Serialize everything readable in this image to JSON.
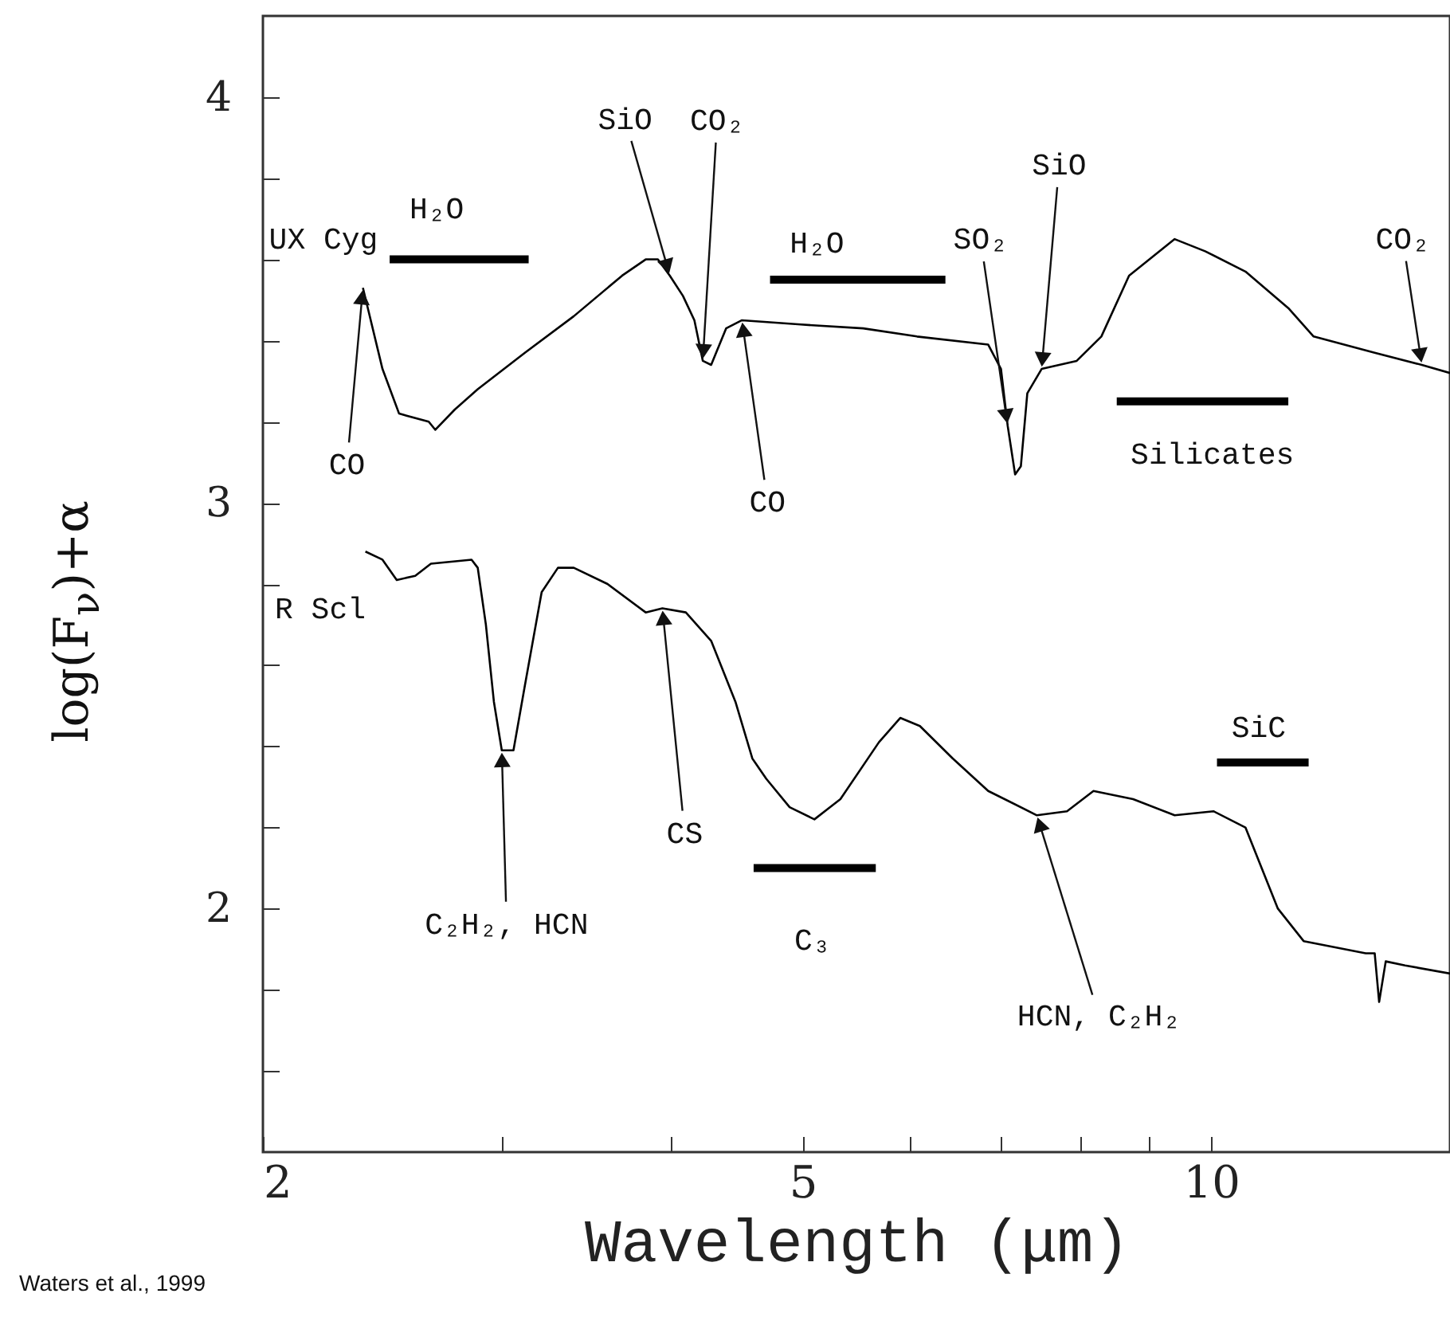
{
  "chart_data": {
    "type": "line",
    "xlabel": "Wavelength (μm)",
    "ylabel": "log(F$_{ν}$)+α",
    "log": "x",
    "xlim": [
      2,
      15
    ],
    "ylim": [
      1.4,
      4.2
    ],
    "xticks": [
      2,
      {
        "value": 3,
        "label": null
      },
      {
        "value": 4,
        "label": null
      },
      5,
      {
        "value": 6,
        "label": null
      },
      {
        "value": 7,
        "label": null
      },
      {
        "value": 8,
        "label": null
      },
      {
        "value": 9,
        "label": null
      },
      10
    ],
    "yticks": [
      {
        "value": 1.6,
        "label": null
      },
      {
        "value": 1.8,
        "label": null
      },
      2,
      {
        "value": 2.2,
        "label": null
      },
      {
        "value": 2.4,
        "label": null
      },
      {
        "value": 2.6,
        "label": null
      },
      {
        "value": 2.8,
        "label": null
      },
      3,
      {
        "value": 3.2,
        "label": null
      },
      {
        "value": 3.4,
        "label": null
      },
      {
        "value": 3.6,
        "label": null
      },
      {
        "value": 3.8,
        "label": null
      },
      4
    ],
    "series": [
      {
        "name": "UX Cyg",
        "color": "#000000",
        "x": [
          2.37,
          2.45,
          2.52,
          2.65,
          2.68,
          2.77,
          2.88,
          3.12,
          3.39,
          3.68,
          3.83,
          3.91,
          3.99,
          4.08,
          4.16,
          4.22,
          4.28,
          4.39,
          4.51,
          4.96,
          5.54,
          6.07,
          6.85,
          7.0,
          7.08,
          7.17,
          7.24,
          7.32,
          7.5,
          7.96,
          8.3,
          8.7,
          9.4,
          9.9,
          10.6,
          11.4,
          11.9,
          13.2,
          14.3,
          15.0
        ],
        "values": [
          3.53,
          3.33,
          3.22,
          3.2,
          3.18,
          3.23,
          3.28,
          3.37,
          3.46,
          3.56,
          3.6,
          3.6,
          3.56,
          3.51,
          3.45,
          3.35,
          3.34,
          3.43,
          3.45,
          3.44,
          3.43,
          3.41,
          3.39,
          3.33,
          3.19,
          3.07,
          3.09,
          3.27,
          3.33,
          3.35,
          3.41,
          3.56,
          3.65,
          3.62,
          3.57,
          3.48,
          3.41,
          3.37,
          3.34,
          3.32
        ]
      },
      {
        "name": "R Scl",
        "color": "#000000",
        "x": [
          2.38,
          2.45,
          2.51,
          2.59,
          2.66,
          2.85,
          2.88,
          2.92,
          2.96,
          3.0,
          3.06,
          3.12,
          3.21,
          3.3,
          3.39,
          3.59,
          3.83,
          3.94,
          4.1,
          4.28,
          4.46,
          4.59,
          4.7,
          4.89,
          5.1,
          5.33,
          5.69,
          5.9,
          6.1,
          6.45,
          6.85,
          7.44,
          7.83,
          8.19,
          8.76,
          9.4,
          10.04,
          10.6,
          11.2,
          11.7,
          13.0,
          13.2,
          13.3,
          13.45,
          13.9,
          15.0
        ],
        "values": [
          2.88,
          2.86,
          2.81,
          2.82,
          2.85,
          2.86,
          2.84,
          2.7,
          2.51,
          2.39,
          2.39,
          2.55,
          2.78,
          2.84,
          2.84,
          2.8,
          2.73,
          2.74,
          2.73,
          2.66,
          2.51,
          2.37,
          2.32,
          2.25,
          2.22,
          2.27,
          2.41,
          2.47,
          2.45,
          2.37,
          2.29,
          2.23,
          2.24,
          2.29,
          2.27,
          2.23,
          2.24,
          2.2,
          2.0,
          1.92,
          1.89,
          1.89,
          1.77,
          1.87,
          1.86,
          1.84
        ]
      },
      {
        "color": "#000000",
        "x": [
          2.48,
          3.14
        ],
        "values": [
          3.6,
          3.6
        ]
      },
      {
        "color": "#000000",
        "x": [
          4.73,
          6.37
        ],
        "values": [
          3.55,
          3.55
        ]
      },
      {
        "color": "#000000",
        "x": [
          8.52,
          11.4
        ],
        "values": [
          3.25,
          3.25
        ]
      },
      {
        "color": "#000000",
        "x": [
          10.1,
          11.8
        ],
        "values": [
          2.36,
          2.36
        ]
      },
      {
        "color": "#000000",
        "x": [
          4.6,
          5.66
        ],
        "values": [
          2.1,
          2.1
        ]
      }
    ],
    "annotations": [
      {
        "text": "CO",
        "x": 2.37,
        "y": 3.53
      },
      {
        "text": "SiO",
        "x": 3.99,
        "y": 3.56
      },
      {
        "text": "CO₂",
        "x": 4.22,
        "y": 3.35
      },
      {
        "text": "H₂O",
        "x": 5.48,
        "y": 3.55
      },
      {
        "text": "SO₂",
        "x": 7.08,
        "y": 3.19
      },
      {
        "text": "SiO",
        "x": 7.5,
        "y": 3.33
      },
      {
        "text": "CO₂",
        "x": 14.3,
        "y": 3.34
      },
      {
        "text": "H₂O",
        "x": 2.79,
        "y": 3.6
      },
      {
        "text": "Silicates",
        "x": 9.86,
        "y": 3.25
      },
      {
        "text": "CO",
        "x": 4.51,
        "y": 3.45
      },
      {
        "text": "CS",
        "x": 3.94,
        "y": 2.74
      },
      {
        "text": "C₂H₂, HCN",
        "x": 3.0,
        "y": 2.39
      },
      {
        "text": "C₃",
        "x": 5.07,
        "y": 2.1
      },
      {
        "text": "SiC",
        "x": 10.9,
        "y": 2.36
      },
      {
        "text": "HCN, C₂H₂",
        "x": 7.44,
        "y": 2.23
      },
      "Waters et al., 1999"
    ]
  }
}
